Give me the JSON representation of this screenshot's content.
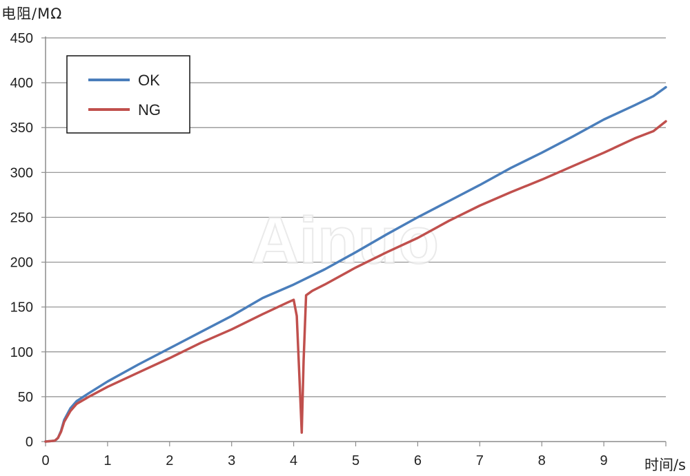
{
  "chart_data": {
    "type": "line",
    "ylabel": "电阻/MΩ",
    "xlabel": "时间/s",
    "xlim": [
      0,
      10
    ],
    "ylim": [
      0,
      450
    ],
    "xticks": [
      0,
      1,
      2,
      3,
      4,
      5,
      6,
      7,
      8,
      9
    ],
    "yticks": [
      0,
      50,
      100,
      150,
      200,
      250,
      300,
      350,
      400,
      450
    ],
    "grid": "horizontal",
    "legend_position": "top-left",
    "watermark": "Ainuo",
    "series": [
      {
        "name": "OK",
        "color": "#4a7ebb",
        "x": [
          0,
          0.15,
          0.2,
          0.25,
          0.3,
          0.4,
          0.5,
          0.7,
          1.0,
          1.5,
          2.0,
          2.5,
          3.0,
          3.5,
          4.0,
          4.5,
          5.0,
          5.5,
          6.0,
          6.5,
          7.0,
          7.5,
          8.0,
          8.5,
          9.0,
          9.5,
          9.8,
          10.0
        ],
        "y": [
          0,
          1,
          4,
          12,
          24,
          37,
          45,
          54,
          67,
          86,
          104,
          122,
          140,
          160,
          175,
          192,
          211,
          231,
          250,
          268,
          286,
          305,
          322,
          340,
          359,
          375,
          385,
          395
        ]
      },
      {
        "name": "NG",
        "color": "#c0504d",
        "x": [
          0,
          0.15,
          0.2,
          0.25,
          0.3,
          0.4,
          0.5,
          0.7,
          1.0,
          1.5,
          2.0,
          2.5,
          3.0,
          3.5,
          3.9,
          4.0,
          4.05,
          4.1,
          4.13,
          4.16,
          4.2,
          4.3,
          4.5,
          5.0,
          5.5,
          6.0,
          6.5,
          7.0,
          7.5,
          8.0,
          8.5,
          9.0,
          9.5,
          9.8,
          10.0
        ],
        "y": [
          0,
          1,
          4,
          11,
          22,
          34,
          42,
          50,
          61,
          77,
          93,
          110,
          125,
          142,
          155,
          158,
          140,
          60,
          10,
          90,
          163,
          168,
          175,
          194,
          211,
          227,
          246,
          263,
          278,
          292,
          307,
          322,
          338,
          346,
          357
        ]
      }
    ]
  }
}
